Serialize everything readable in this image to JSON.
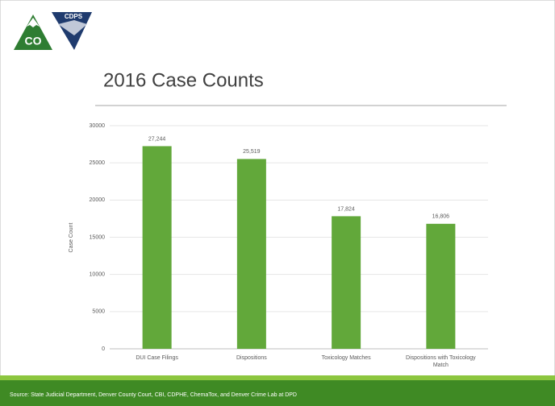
{
  "logo": {
    "state": "CO",
    "agency": "CDPS"
  },
  "source": "Source: State Judicial Department, Denver County Court, CBI, CDPHE, ChemaTox, and Denver Crime Lab at DPD",
  "chart_data": {
    "type": "bar",
    "title": "2016 Case Counts",
    "ylabel": "Case Count",
    "categories": [
      "DUI Case Filings",
      "Dispositions",
      "Toxicology Matches",
      "Dispositions with Toxicology Match"
    ],
    "values": [
      27244,
      25519,
      17824,
      16806
    ],
    "value_labels": [
      "27,244",
      "25,519",
      "17,824",
      "16,806"
    ],
    "color": "#62a83a",
    "ylim": [
      0,
      30000
    ],
    "yticks": [
      0,
      5000,
      10000,
      15000,
      20000,
      25000,
      30000
    ],
    "grid": true
  }
}
